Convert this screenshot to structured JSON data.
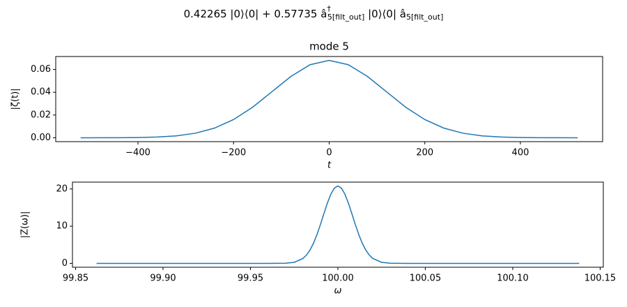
{
  "title": [
    "0.42265 |0⟩⟨0| + 0.57735 â",
    "†",
    "5[filt_out]",
    " |0⟩⟨0| â",
    "5[filt_out]"
  ],
  "chart_data": [
    {
      "type": "line",
      "title": "mode 5",
      "xlabel": "t",
      "ylabel": "|ζ(t)|",
      "x": [
        -520,
        -480,
        -440,
        -400,
        -360,
        -320,
        -280,
        -240,
        -200,
        -160,
        -120,
        -80,
        -40,
        0,
        40,
        80,
        120,
        160,
        200,
        240,
        280,
        320,
        360,
        400,
        440,
        480,
        520
      ],
      "values": [
        0.0,
        2e-05,
        6e-05,
        0.00021,
        0.00063,
        0.00167,
        0.00399,
        0.00846,
        0.016,
        0.0269,
        0.0404,
        0.0539,
        0.0642,
        0.068,
        0.0642,
        0.0539,
        0.0404,
        0.0269,
        0.016,
        0.00846,
        0.00399,
        0.00167,
        0.00063,
        0.00021,
        6e-05,
        2e-05,
        0.0
      ],
      "color": "#1f77b4",
      "xlim": [
        -572,
        572
      ],
      "xticks": [
        {
          "value": -400,
          "label": "−400"
        },
        {
          "value": -200,
          "label": "−200"
        },
        0,
        200,
        400
      ],
      "ylim": [
        -0.0034,
        0.0714
      ],
      "yticks": [
        {
          "value": 0,
          "label": "0.00"
        },
        {
          "value": 0.02,
          "label": "0.02"
        },
        {
          "value": 0.04,
          "label": "0.04"
        },
        {
          "value": 0.06,
          "label": "0.06"
        }
      ]
    },
    {
      "type": "line",
      "xlabel": "ω",
      "ylabel": "|Z(ω)|",
      "x": [
        99.862,
        99.9,
        99.95,
        99.96,
        99.97,
        99.975,
        99.98,
        99.982,
        99.984,
        99.986,
        99.988,
        99.99,
        99.992,
        99.994,
        99.996,
        99.998,
        100,
        100.002,
        100.004,
        100.006,
        100.008,
        100.01,
        100.012,
        100.014,
        100.016,
        100.018,
        100.02,
        100.025,
        100.03,
        100.04,
        100.05,
        100.1,
        100.138
      ],
      "values": [
        0,
        0,
        0,
        0,
        0.04,
        0.28,
        1.31,
        2.21,
        3.54,
        5.36,
        7.68,
        10.41,
        13.36,
        16.21,
        18.62,
        20.23,
        20.8,
        20.23,
        18.62,
        16.21,
        13.36,
        10.41,
        7.68,
        5.36,
        3.54,
        2.21,
        1.31,
        0.28,
        0.04,
        0,
        0,
        0,
        0
      ],
      "color": "#1f77b4",
      "xlim": [
        99.8482,
        100.1518
      ],
      "xticks": [
        99.85,
        {
          "value": 99.9,
          "label": "99.90"
        },
        99.95,
        {
          "value": 100,
          "label": "100.00"
        },
        100.05,
        {
          "value": 100.1,
          "label": "100.10"
        },
        100.15
      ],
      "ylim": [
        -1.04,
        21.84
      ],
      "yticks": [
        0,
        10,
        20
      ]
    }
  ]
}
